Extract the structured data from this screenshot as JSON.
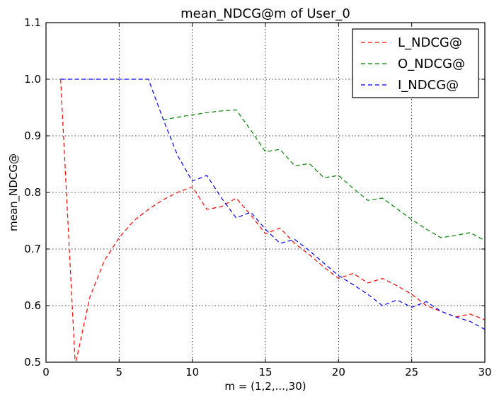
{
  "chart_data": {
    "type": "line",
    "title": "mean_NDCG@m of User_0",
    "xlabel": "m = (1,2,...,30)",
    "ylabel": "mean_NDCG@",
    "xlim": [
      0,
      30
    ],
    "ylim": [
      0.5,
      1.1
    ],
    "xticks": [
      0,
      5,
      10,
      15,
      20,
      25,
      30
    ],
    "yticks": [
      0.5,
      0.6,
      0.7,
      0.8,
      0.9,
      1.0,
      1.1
    ],
    "xtick_labels": [
      "0",
      "5",
      "10",
      "15",
      "20",
      "25",
      "30"
    ],
    "ytick_labels": [
      "0.5",
      "0.6",
      "0.7",
      "0.8",
      "0.9",
      "1.0",
      "1.1"
    ],
    "grid": true,
    "legend_position": "top-right",
    "series": [
      {
        "name": "L_NDCG@",
        "color": "#ff0000",
        "x": [
          1,
          2,
          3,
          4,
          5,
          6,
          7,
          8,
          9,
          10,
          11,
          12,
          13,
          14,
          15,
          16,
          17,
          18,
          19,
          20,
          21,
          22,
          23,
          24,
          25,
          26,
          27,
          28,
          29,
          30
        ],
        "values": [
          1.0,
          0.495,
          0.615,
          0.68,
          0.72,
          0.75,
          0.77,
          0.787,
          0.8,
          0.81,
          0.77,
          0.775,
          0.79,
          0.76,
          0.727,
          0.737,
          0.71,
          0.69,
          0.668,
          0.648,
          0.657,
          0.64,
          0.648,
          0.635,
          0.62,
          0.6,
          0.59,
          0.58,
          0.585,
          0.575
        ]
      },
      {
        "name": "O_NDCG@",
        "color": "#008000",
        "x": [
          8,
          9,
          10,
          11,
          12,
          13,
          14,
          15,
          16,
          17,
          18,
          19,
          20,
          21,
          22,
          23,
          24,
          25,
          26,
          27,
          28,
          29,
          30
        ],
        "values": [
          0.928,
          0.933,
          0.937,
          0.941,
          0.944,
          0.946,
          0.91,
          0.872,
          0.876,
          0.847,
          0.851,
          0.826,
          0.83,
          0.807,
          0.786,
          0.79,
          0.771,
          0.752,
          0.735,
          0.72,
          0.724,
          0.729,
          0.715
        ]
      },
      {
        "name": "I_NDCG@",
        "color": "#0000ff",
        "x": [
          1,
          2,
          3,
          4,
          5,
          6,
          7,
          8,
          9,
          10,
          11,
          12,
          13,
          14,
          15,
          16,
          17,
          18,
          19,
          20,
          21,
          22,
          23,
          24,
          25,
          26,
          27,
          28,
          29,
          30
        ],
        "values": [
          1.0,
          1.0,
          1.0,
          1.0,
          1.0,
          1.0,
          1.0,
          0.93,
          0.865,
          0.82,
          0.83,
          0.79,
          0.755,
          0.765,
          0.735,
          0.71,
          0.717,
          0.697,
          0.675,
          0.653,
          0.637,
          0.62,
          0.6,
          0.61,
          0.597,
          0.607,
          0.59,
          0.58,
          0.572,
          0.558
        ]
      }
    ]
  }
}
